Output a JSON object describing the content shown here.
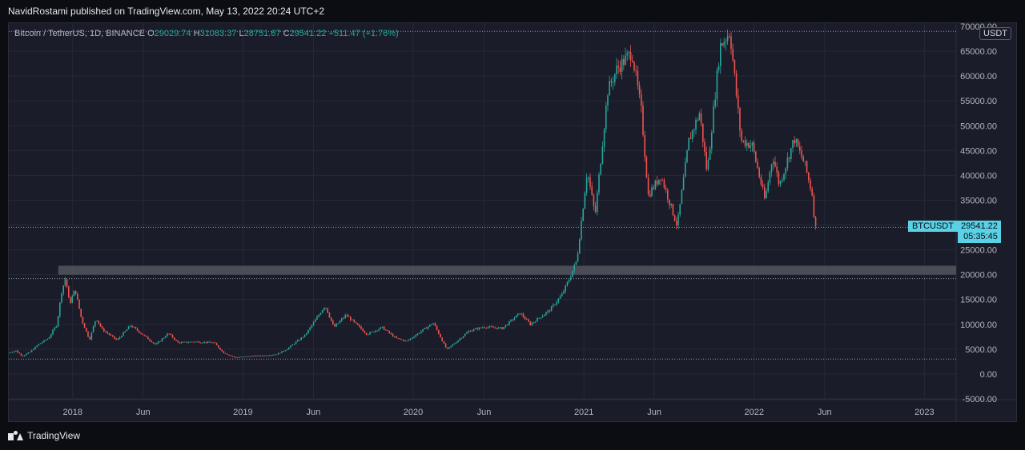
{
  "header": {
    "text": "NavidRostami published on TradingView.com, May 13, 2022 20:24 UTC+2"
  },
  "legend": {
    "title": "Bitcoin / TetherUS, 1D, BINANCE",
    "o_label": "O",
    "o_value": "29029.74",
    "h_label": "H",
    "h_value": "31083.37",
    "l_label": "L",
    "l_value": "28751.67",
    "c_label": "C",
    "c_value": "29541.22",
    "change": "+511.47 (+1.76%)"
  },
  "price_axis": {
    "unit": "USDT"
  },
  "last_price": {
    "symbol": "BTCUSDT",
    "price": "29541.22",
    "countdown": "05:35:45"
  },
  "footer": {
    "brand": "TradingView"
  },
  "colors": {
    "up": "#26a69a",
    "down": "#ef5350",
    "grid": "#262a36",
    "zone": "#5b5e66",
    "accent": "#5ad1e6"
  },
  "chart_data": {
    "type": "line",
    "title": "Bitcoin / TetherUS, 1D, BINANCE",
    "x_tick_labels": [
      "2018",
      "Jun",
      "2019",
      "Jun",
      "2020",
      "Jun",
      "2021",
      "Jun",
      "2022",
      "Jun",
      "2023"
    ],
    "y_tick_labels": [
      "70000.00",
      "65000.00",
      "60000.00",
      "55000.00",
      "50000.00",
      "45000.00",
      "40000.00",
      "35000.00",
      "30000.00",
      "25000.00",
      "20000.00",
      "15000.00",
      "10000.00",
      "5000.00",
      "0.00",
      "-5000.00"
    ],
    "ylim": [
      -5000,
      70000
    ],
    "xlim": [
      "2017-08-17",
      "2023-03-10"
    ],
    "grid": true,
    "horizontal_lines": [
      69000,
      29541.22,
      19200,
      3000
    ],
    "zone": {
      "from": 20000,
      "to": 21800,
      "x_start": "2017-12-01"
    },
    "series": [
      {
        "values_x": [
          "2017-08-17",
          "2017-09-01",
          "2017-09-15",
          "2017-10-01",
          "2017-10-20",
          "2017-11-10",
          "2017-11-28",
          "2017-12-08",
          "2017-12-17",
          "2017-12-25",
          "2018-01-06",
          "2018-01-20",
          "2018-02-06",
          "2018-02-20",
          "2018-03-05",
          "2018-04-06",
          "2018-05-05",
          "2018-06-28",
          "2018-07-25",
          "2018-08-15",
          "2018-09-20",
          "2018-10-31",
          "2018-11-20",
          "2018-12-15",
          "2019-01-15",
          "2019-02-15",
          "2019-03-15",
          "2019-04-05",
          "2019-05-15",
          "2019-06-26",
          "2019-07-15",
          "2019-08-10",
          "2019-09-24",
          "2019-10-26",
          "2019-11-25",
          "2019-12-18",
          "2020-02-13",
          "2020-03-13",
          "2020-04-30",
          "2020-06-01",
          "2020-07-10",
          "2020-08-17",
          "2020-09-08",
          "2020-10-20",
          "2020-11-15",
          "2020-12-01",
          "2020-12-17",
          "2021-01-08",
          "2021-01-25",
          "2021-02-21",
          "2021-03-13",
          "2021-04-14",
          "2021-05-04",
          "2021-05-19",
          "2021-06-15",
          "2021-07-20",
          "2021-08-14",
          "2021-09-06",
          "2021-09-22",
          "2021-10-20",
          "2021-11-10",
          "2021-12-04",
          "2021-12-28",
          "2022-01-24",
          "2022-02-10",
          "2022-02-24",
          "2022-03-28",
          "2022-04-20",
          "2022-05-06",
          "2022-05-12",
          "2022-05-13"
        ],
        "values_y": [
          4300,
          4700,
          3600,
          4400,
          6000,
          7200,
          10000,
          16500,
          19500,
          14000,
          17100,
          11000,
          6900,
          11300,
          9000,
          6800,
          9800,
          5900,
          8200,
          6300,
          6500,
          6300,
          4300,
          3300,
          3600,
          3700,
          4000,
          5000,
          7900,
          13800,
          9400,
          11900,
          8000,
          9400,
          7200,
          6600,
          10300,
          4900,
          8700,
          9500,
          9200,
          12300,
          10000,
          12900,
          16000,
          19200,
          23000,
          41000,
          32000,
          57000,
          61500,
          64800,
          53000,
          36000,
          40000,
          29800,
          47000,
          52600,
          40500,
          66000,
          69000,
          47000,
          46000,
          35000,
          44000,
          38000,
          47400,
          42000,
          36000,
          28800,
          29541
        ]
      }
    ],
    "last_value": 29541.22,
    "countdown": "05:35:45"
  }
}
